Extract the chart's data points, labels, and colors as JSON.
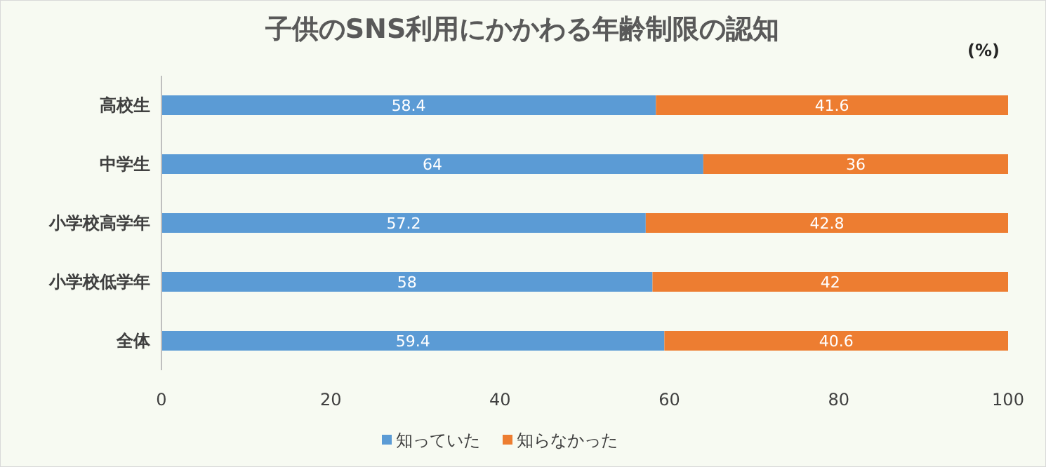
{
  "chart_data": {
    "type": "bar",
    "orientation": "horizontal",
    "stacked": true,
    "title": "子供のSNS利用にかかわる年齢制限の認知",
    "annotations": [
      "(%)"
    ],
    "categories": [
      "高校生",
      "中学生",
      "小学校高学年",
      "小学校低学年",
      "全体"
    ],
    "series": [
      {
        "name": "知っていた",
        "color": "#5b9bd5",
        "values": [
          58.4,
          64,
          57.2,
          58,
          59.4
        ]
      },
      {
        "name": "知らなかった",
        "color": "#ed7d31",
        "values": [
          41.6,
          36,
          42.8,
          42,
          40.6
        ]
      }
    ],
    "xlim": [
      0,
      100
    ],
    "xticks": [
      0,
      20,
      40,
      60,
      80,
      100
    ],
    "data_labels": true,
    "legend": "bottom",
    "grid": false
  }
}
